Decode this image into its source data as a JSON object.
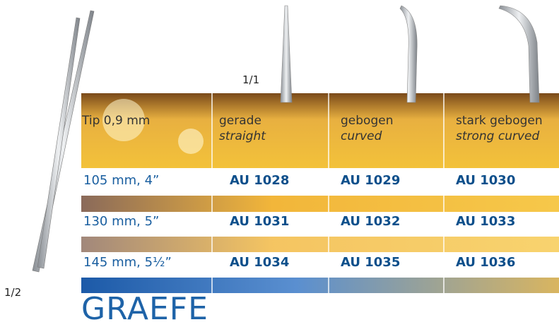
{
  "scale_top": "1/1",
  "scale_side": "1/2",
  "table": {
    "header": [
      {
        "line1": "Tip 0,9 mm"
      },
      {
        "line1": "gerade",
        "line2": "straight"
      },
      {
        "line1": "gebogen",
        "line2": "curved"
      },
      {
        "line1": "stark gebogen",
        "line2": "strong curved"
      }
    ],
    "rows": [
      [
        "105 mm, 4”",
        "AU 1028",
        "AU 1029",
        "AU 1030"
      ],
      [
        "130 mm, 5”",
        "AU 1031",
        "AU 1032",
        "AU 1033"
      ],
      [
        "145 mm, 5½”",
        "AU 1034",
        "AU 1035",
        "AU 1036"
      ]
    ]
  },
  "title": "GRAEFE"
}
